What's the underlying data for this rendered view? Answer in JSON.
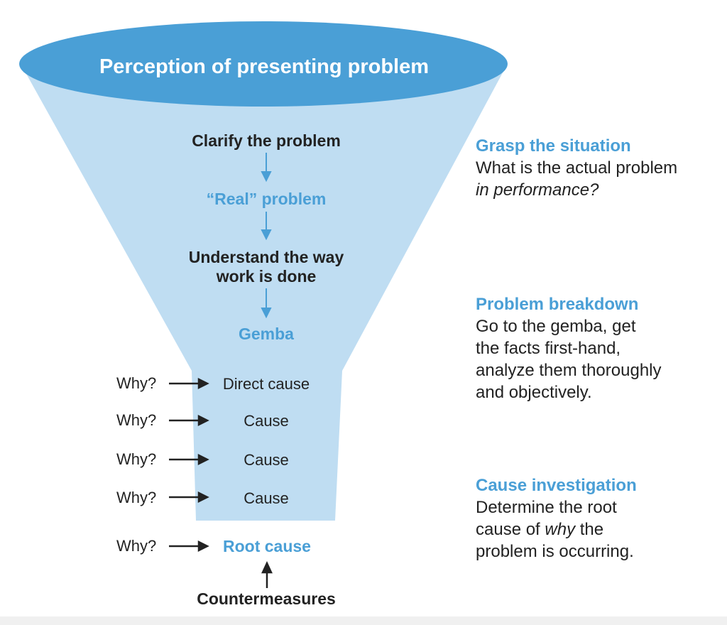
{
  "colors": {
    "funnel_top": "#4a9fd6",
    "funnel_body": "#bfddf2",
    "accent_text": "#4a9fd6",
    "dark_text": "#222222"
  },
  "funnel": {
    "title": "Perception of presenting problem",
    "steps": [
      "Clarify the problem",
      "“Real” problem",
      "Understand the way",
      "work is done",
      "Gemba"
    ],
    "why_label": "Why?",
    "causes": [
      "Direct cause",
      "Cause",
      "Cause",
      "Cause"
    ],
    "root_cause": "Root cause",
    "countermeasures": "Countermeasures"
  },
  "sections": [
    {
      "heading": "Grasp the situation",
      "lines": [
        "What is the actual problem"
      ],
      "italic": "in performance?"
    },
    {
      "heading": "Problem breakdown",
      "lines": [
        "Go to the gemba, get",
        "the facts first-hand,",
        "analyze them thoroughly",
        "and objectively."
      ]
    },
    {
      "heading": "Cause investigation",
      "line1": "Determine the root",
      "line2_pre": "cause of ",
      "line2_em": "why",
      "line2_post": " the",
      "line3": "problem is occurring."
    }
  ]
}
